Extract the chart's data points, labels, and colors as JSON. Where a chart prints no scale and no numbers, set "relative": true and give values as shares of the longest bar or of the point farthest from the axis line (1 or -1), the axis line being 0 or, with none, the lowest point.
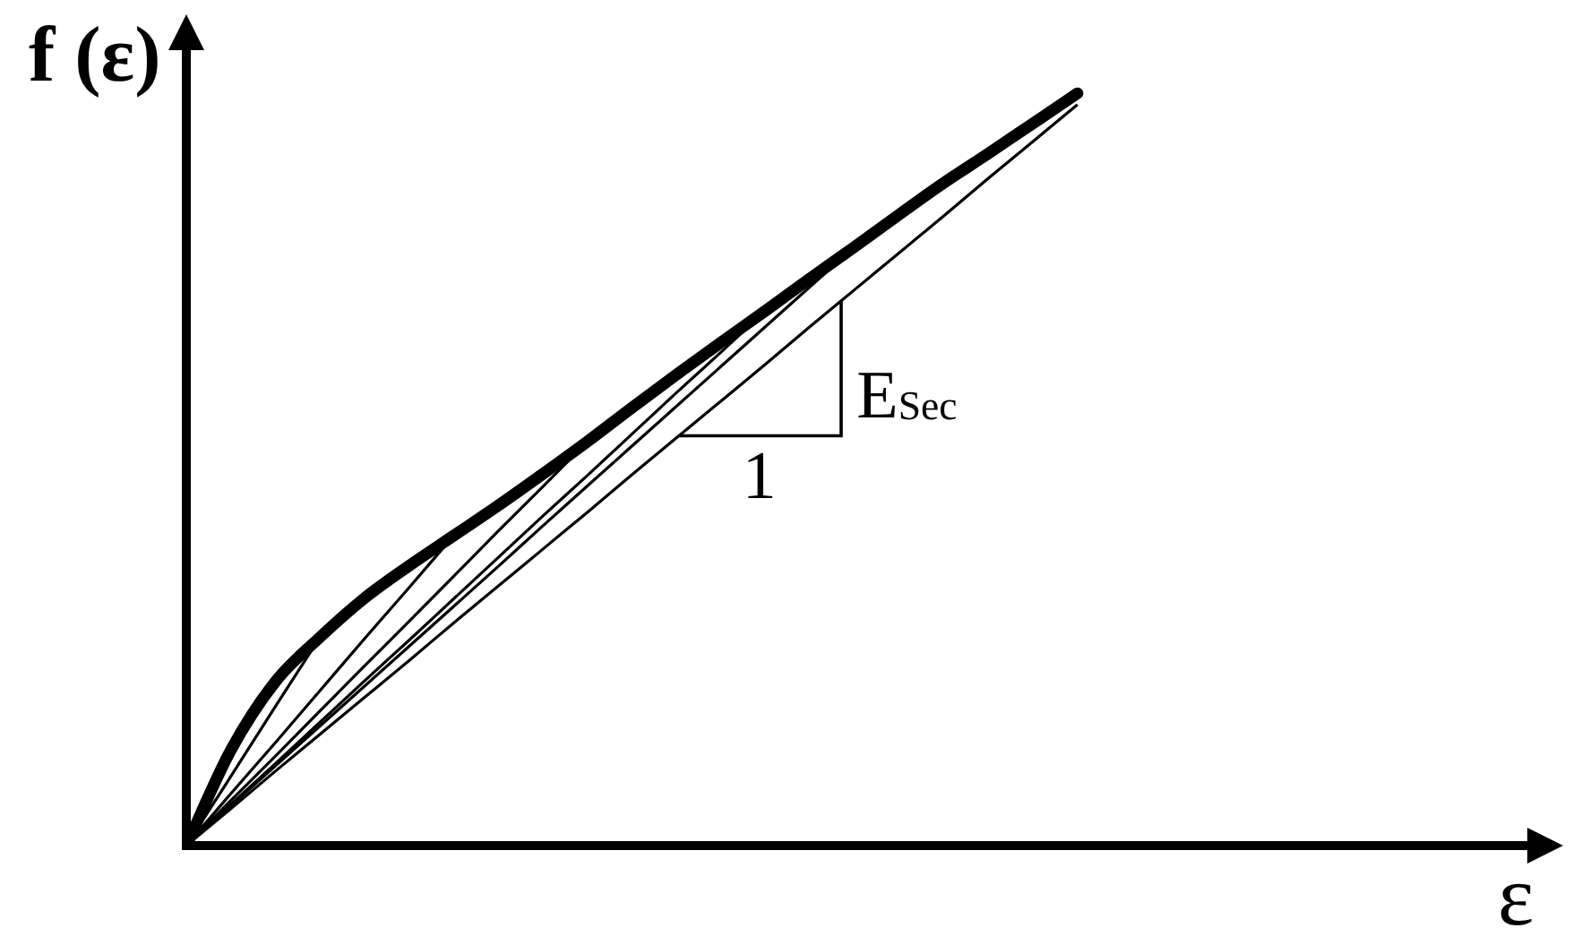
{
  "chart_data": {
    "type": "line",
    "relative": true,
    "xlabel": "ε",
    "ylabel": "f (ε)",
    "marker": "none",
    "line_style": "solid",
    "categories": [
      null,
      null,
      null,
      null,
      null,
      null,
      null,
      null,
      null,
      null,
      null,
      null,
      null,
      null,
      null,
      null,
      null,
      null,
      null,
      null,
      null
    ],
    "series": [
      {
        "color": "#000000",
        "values": [
          0,
          0.127,
          0.218,
          0.277,
          0.329,
          0.372,
          0.412,
          0.452,
          0.494,
          0.537,
          0.582,
          0.626,
          0.669,
          0.711,
          0.754,
          0.796,
          0.839,
          0.881,
          0.92,
          0.96,
          1
        ]
      },
      {
        "color": "#000000",
        "values": [
          0,
          0.092,
          0.185,
          0.277,
          null,
          null,
          null,
          null,
          null,
          null,
          null,
          null,
          null,
          null,
          null,
          null,
          null,
          null,
          null,
          null,
          null
        ]
      },
      {
        "color": "#000000",
        "values": [
          0,
          0.069,
          0.137,
          0.206,
          0.275,
          0.343,
          0.412,
          null,
          null,
          null,
          null,
          null,
          null,
          null,
          null,
          null,
          null,
          null,
          null,
          null,
          null
        ]
      },
      {
        "color": "#000000",
        "values": [
          0,
          0.06,
          0.119,
          0.179,
          0.239,
          0.298,
          0.358,
          0.418,
          0.477,
          0.537,
          null,
          null,
          null,
          null,
          null,
          null,
          null,
          null,
          null,
          null,
          null
        ]
      },
      {
        "color": "#000000",
        "values": [
          0,
          0.055,
          0.109,
          0.164,
          0.219,
          0.273,
          0.328,
          0.383,
          0.438,
          0.492,
          0.547,
          0.602,
          0.656,
          0.711,
          null,
          null,
          null,
          null,
          null,
          null,
          null
        ]
      },
      {
        "color": "#000000",
        "values": [
          0,
          0.053,
          0.106,
          0.159,
          0.212,
          0.265,
          0.318,
          0.371,
          0.425,
          0.478,
          0.531,
          0.584,
          0.637,
          0.69,
          0.743,
          0.796,
          null,
          null,
          null,
          null,
          null
        ]
      },
      {
        "color": "#000000",
        "values": [
          0,
          0.049,
          0.099,
          0.148,
          0.197,
          0.246,
          0.296,
          0.345,
          0.394,
          0.443,
          0.493,
          0.542,
          0.591,
          0.64,
          0.69,
          0.739,
          0.788,
          0.837,
          0.887,
          0.936,
          0.985
        ]
      }
    ],
    "annotations": [
      "1",
      "E$_{Sec}$"
    ]
  }
}
